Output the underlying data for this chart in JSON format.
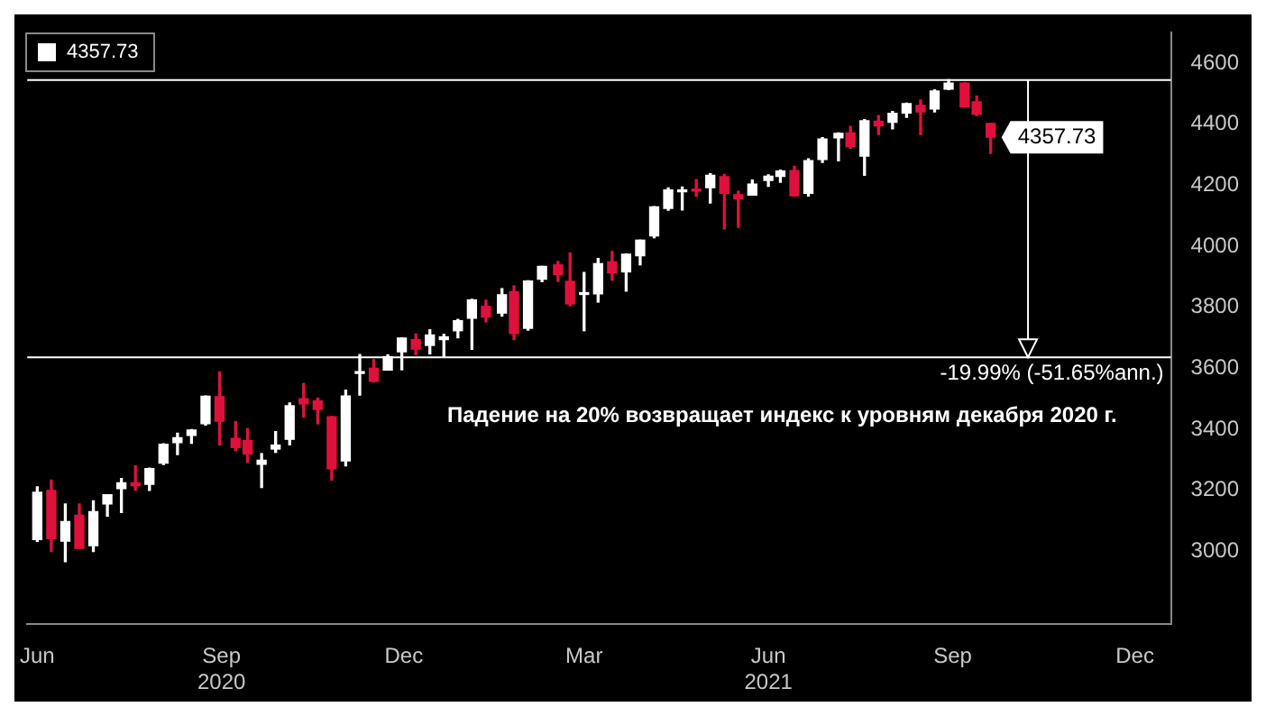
{
  "chart_data": {
    "type": "candlestick",
    "x": [
      "2020-06-01",
      "2020-06-08",
      "2020-06-15",
      "2020-06-22",
      "2020-06-29",
      "2020-07-06",
      "2020-07-13",
      "2020-07-20",
      "2020-07-27",
      "2020-08-03",
      "2020-08-10",
      "2020-08-17",
      "2020-08-24",
      "2020-08-31",
      "2020-09-08",
      "2020-09-14",
      "2020-09-21",
      "2020-09-28",
      "2020-10-05",
      "2020-10-12",
      "2020-10-19",
      "2020-10-26",
      "2020-11-02",
      "2020-11-09",
      "2020-11-16",
      "2020-11-23",
      "2020-11-30",
      "2020-12-07",
      "2020-12-14",
      "2020-12-21",
      "2020-12-28",
      "2021-01-04",
      "2021-01-11",
      "2021-01-19",
      "2021-01-25",
      "2021-02-01",
      "2021-02-08",
      "2021-02-16",
      "2021-02-22",
      "2021-03-01",
      "2021-03-08",
      "2021-03-15",
      "2021-03-22",
      "2021-03-29",
      "2021-04-05",
      "2021-04-12",
      "2021-04-19",
      "2021-04-26",
      "2021-05-03",
      "2021-05-10",
      "2021-05-17",
      "2021-05-24",
      "2021-06-01",
      "2021-06-07",
      "2021-06-14",
      "2021-06-21",
      "2021-06-28",
      "2021-07-06",
      "2021-07-12",
      "2021-07-19",
      "2021-07-26",
      "2021-08-02",
      "2021-08-09",
      "2021-08-16",
      "2021-08-23",
      "2021-08-30",
      "2021-09-07",
      "2021-09-13",
      "2021-09-20"
    ],
    "ohlc": [
      [
        3038,
        3211,
        3032,
        3193
      ],
      [
        3199,
        3233,
        2999,
        3041
      ],
      [
        3033,
        3155,
        2966,
        3097
      ],
      [
        3118,
        3155,
        3009,
        3009
      ],
      [
        3018,
        3165,
        2999,
        3130
      ],
      [
        3155,
        3185,
        3115,
        3185
      ],
      [
        3205,
        3238,
        3127,
        3224
      ],
      [
        3224,
        3280,
        3200,
        3215
      ],
      [
        3219,
        3272,
        3199,
        3271
      ],
      [
        3289,
        3352,
        3284,
        3351
      ],
      [
        3356,
        3387,
        3317,
        3372
      ],
      [
        3380,
        3399,
        3354,
        3397
      ],
      [
        3418,
        3509,
        3414,
        3508
      ],
      [
        3507,
        3588,
        3349,
        3426
      ],
      [
        3370,
        3425,
        3330,
        3340
      ],
      [
        3363,
        3402,
        3292,
        3319
      ],
      [
        3285,
        3320,
        3209,
        3298
      ],
      [
        3335,
        3392,
        3324,
        3348
      ],
      [
        3367,
        3486,
        3349,
        3477
      ],
      [
        3500,
        3550,
        3440,
        3483
      ],
      [
        3493,
        3502,
        3418,
        3465
      ],
      [
        3441,
        3442,
        3233,
        3270
      ],
      [
        3296,
        3528,
        3280,
        3509
      ],
      [
        3583,
        3645,
        3512,
        3585
      ],
      [
        3600,
        3628,
        3555,
        3557
      ],
      [
        3594,
        3644,
        3594,
        3638
      ],
      [
        3654,
        3699,
        3595,
        3699
      ],
      [
        3694,
        3712,
        3645,
        3663
      ],
      [
        3675,
        3726,
        3647,
        3709
      ],
      [
        3694,
        3711,
        3637,
        3703
      ],
      [
        3723,
        3760,
        3700,
        3756
      ],
      [
        3764,
        3826,
        3662,
        3824
      ],
      [
        3803,
        3823,
        3752,
        3768
      ],
      [
        3781,
        3861,
        3771,
        3841
      ],
      [
        3851,
        3870,
        3694,
        3714
      ],
      [
        3731,
        3887,
        3725,
        3886
      ],
      [
        3892,
        3934,
        3884,
        3934
      ],
      [
        3939,
        3950,
        3885,
        3907
      ],
      [
        3885,
        3978,
        3805,
        3811
      ],
      [
        3842,
        3914,
        3723,
        3842
      ],
      [
        3844,
        3960,
        3817,
        3943
      ],
      [
        3949,
        3983,
        3889,
        3913
      ],
      [
        3916,
        3975,
        3853,
        3974
      ],
      [
        3969,
        4020,
        3939,
        4020
      ],
      [
        4034,
        4130,
        4028,
        4129
      ],
      [
        4124,
        4191,
        4118,
        4185
      ],
      [
        4179,
        4194,
        4119,
        4180
      ],
      [
        4186,
        4219,
        4164,
        4181
      ],
      [
        4192,
        4238,
        4142,
        4233
      ],
      [
        4228,
        4236,
        4057,
        4174
      ],
      [
        4169,
        4180,
        4062,
        4156
      ],
      [
        4168,
        4217,
        4168,
        4204
      ],
      [
        4216,
        4234,
        4197,
        4230
      ],
      [
        4229,
        4250,
        4210,
        4247
      ],
      [
        4248,
        4262,
        4165,
        4166
      ],
      [
        4174,
        4287,
        4165,
        4281
      ],
      [
        4285,
        4356,
        4275,
        4352
      ],
      [
        4356,
        4372,
        4280,
        4370
      ],
      [
        4372,
        4393,
        4322,
        4327
      ],
      [
        4296,
        4415,
        4233,
        4412
      ],
      [
        4410,
        4429,
        4367,
        4395
      ],
      [
        4407,
        4442,
        4385,
        4436
      ],
      [
        4437,
        4469,
        4423,
        4468
      ],
      [
        4462,
        4480,
        4367,
        4441
      ],
      [
        4450,
        4513,
        4441,
        4509
      ],
      [
        4515,
        4546,
        4514,
        4535
      ],
      [
        4535,
        4536,
        4457,
        4458
      ],
      [
        4474,
        4492,
        4429,
        4433
      ],
      [
        4403,
        4403,
        4305,
        4357.73
      ]
    ],
    "colors": [
      "#ffffff",
      "#e0103c",
      "#ffffff",
      "#e0103c",
      "#ffffff",
      "#ffffff",
      "#ffffff",
      "#e0103c",
      "#ffffff",
      "#ffffff",
      "#ffffff",
      "#ffffff",
      "#ffffff",
      "#e0103c",
      "#e0103c",
      "#e0103c",
      "#ffffff",
      "#ffffff",
      "#ffffff",
      "#e0103c",
      "#e0103c",
      "#e0103c",
      "#ffffff",
      "#ffffff",
      "#e0103c",
      "#ffffff",
      "#ffffff",
      "#e0103c",
      "#ffffff",
      "#ffffff",
      "#ffffff",
      "#ffffff",
      "#e0103c",
      "#ffffff",
      "#e0103c",
      "#ffffff",
      "#ffffff",
      "#e0103c",
      "#e0103c",
      "#ffffff",
      "#ffffff",
      "#e0103c",
      "#ffffff",
      "#ffffff",
      "#ffffff",
      "#ffffff",
      "#ffffff",
      "#e0103c",
      "#ffffff",
      "#e0103c",
      "#e0103c",
      "#ffffff",
      "#ffffff",
      "#ffffff",
      "#e0103c",
      "#ffffff",
      "#ffffff",
      "#ffffff",
      "#e0103c",
      "#ffffff",
      "#e0103c",
      "#ffffff",
      "#ffffff",
      "#e0103c",
      "#ffffff",
      "#ffffff",
      "#e0103c",
      "#e0103c",
      "#e0103c"
    ],
    "xlim": [
      "2020-05-27",
      "2021-12-19"
    ],
    "xticks": [
      {
        "value": "2020-06-01",
        "label": "Jun"
      },
      {
        "value": "2020-09-01",
        "label": "Sep\n2020"
      },
      {
        "value": "2020-12-01",
        "label": "Dec"
      },
      {
        "value": "2021-03-01",
        "label": "Mar"
      },
      {
        "value": "2021-06-01",
        "label": "Jun\n2021"
      },
      {
        "value": "2021-09-01",
        "label": "Sep"
      },
      {
        "value": "2021-12-01",
        "label": "Dec"
      }
    ],
    "ylim": [
      2760,
      4700
    ],
    "yticks": [
      3000,
      3200,
      3400,
      3600,
      3800,
      4000,
      4200,
      4400,
      4600
    ],
    "ref_lines": [
      {
        "axis": "y",
        "value": 4545,
        "label": null,
        "color": "#ffffff"
      },
      {
        "axis": "y",
        "value": 3636,
        "label": "-19.99% (-51.65%ann.)",
        "color": "#ffffff"
      }
    ],
    "annotations": [
      {
        "text": "4357.73",
        "x": "2021-09-20",
        "y": 4357.73
      },
      "4357.73",
      "Падение на 20% возвращает индекс к уровням декабря 2020 г."
    ],
    "grid": false
  }
}
